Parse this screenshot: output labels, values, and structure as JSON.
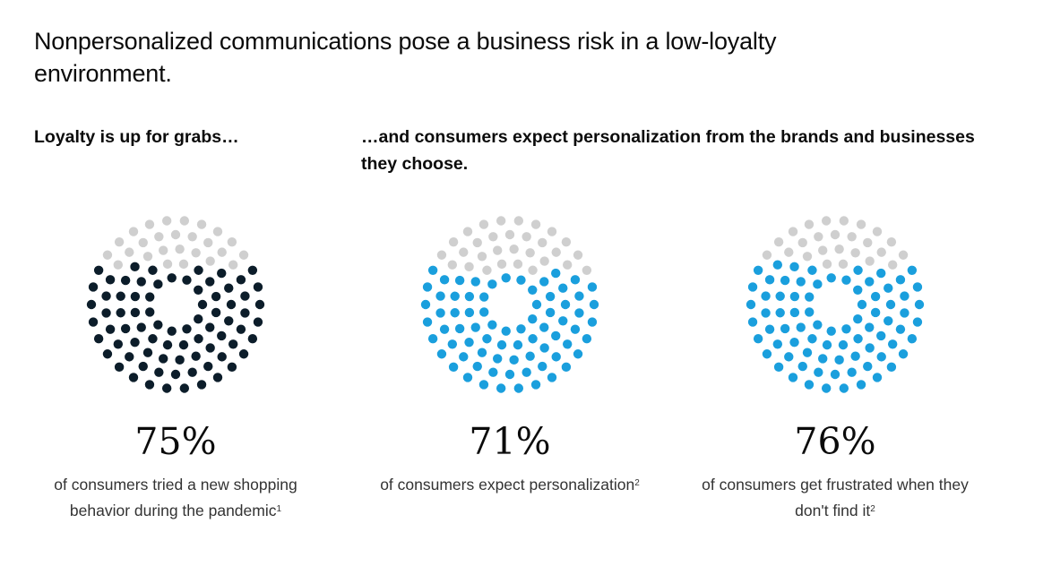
{
  "title": "Nonpersonalized communications pose a business risk in a low-loyalty environment.",
  "subtitle_left": "Loyalty is up for grabs…",
  "subtitle_right": "…and consumers expect personalization from the brands and businesses they choose.",
  "colors": {
    "dark": "#0c1d2a",
    "blue": "#1a9fdd",
    "gray": "#cfcfcf"
  },
  "chart_data": [
    {
      "type": "dot-circle",
      "value": 75,
      "label": "75%",
      "text": "of consumers tried a new shopping behavior during the pandemic",
      "footnote": "1",
      "color": "#0c1d2a"
    },
    {
      "type": "dot-circle",
      "value": 71,
      "label": "71%",
      "text": "of consumers expect personalization",
      "footnote": "2",
      "color": "#1a9fdd"
    },
    {
      "type": "dot-circle",
      "value": 76,
      "label": "76%",
      "text": "of consumers get frustrated when they don't find it",
      "footnote": "2",
      "color": "#1a9fdd"
    }
  ]
}
